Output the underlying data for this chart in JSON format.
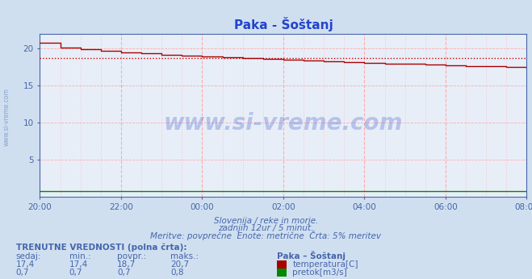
{
  "title": "Paka - Šoštanj",
  "bg_color": "#d0dff0",
  "plot_bg_color": "#e8eef8",
  "grid_color": "#ffaaaa",
  "minor_grid_color": "#ffcccc",
  "border_color": "#4466aa",
  "title_color": "#2244cc",
  "temp_color": "#aa0000",
  "flow_color": "#008800",
  "avg_line_color": "#cc0000",
  "avg_value": 18.7,
  "ylim": [
    0,
    22
  ],
  "yticks": [
    5,
    10,
    15,
    20
  ],
  "n_points": 145,
  "xtick_positions": [
    0,
    24,
    48,
    72,
    96,
    120,
    144
  ],
  "xtick_labels": [
    "20:00",
    "22:00",
    "00:00",
    "02:00",
    "04:00",
    "06:00",
    "08:00"
  ],
  "subtitle1": "Slovenija / reke in morje.",
  "subtitle2": "zadnjih 12ur / 5 minut.",
  "subtitle3": "Meritve: povprečne  Enote: metrične  Črta: 5% meritev",
  "legend_title": "Paka – Šoštanj",
  "legend_items": [
    "temperatura[C]",
    "pretok[m3/s]"
  ],
  "table_header": "TRENUTNE VREDNOSTI (polna črta):",
  "table_cols": [
    "sedaj:",
    "min.:",
    "povpr.:",
    "maks.:"
  ],
  "temp_row": [
    "17,4",
    "17,4",
    "18,7",
    "20,7"
  ],
  "flow_row": [
    "0,7",
    "0,7",
    "0,7",
    "0,8"
  ],
  "watermark": "www.si-vreme.com",
  "watermark_color": "#3355cc",
  "sidewatermark": "www.si-vreme.com",
  "sidewatermark_color": "#6688bb"
}
